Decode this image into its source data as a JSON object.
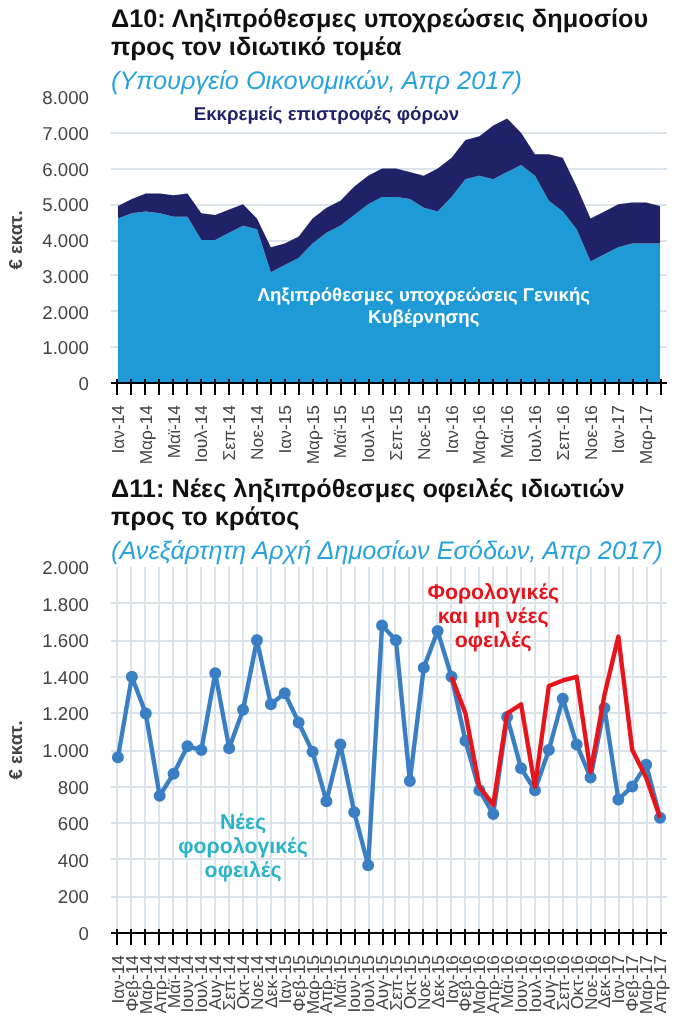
{
  "chart_data": [
    {
      "type": "area",
      "stacked": true,
      "title": "Δ10: Ληξιπρόθεσμες υποχρεώσεις δημοσίου προς τον ιδιωτικό τομέα",
      "subtitle": "(Υπουργείο Οικονομικών, Απρ 2017)",
      "ylabel": "€ εκατ.",
      "categories": [
        "Ιαν-14",
        null,
        "Μαρ-14",
        null,
        "Μαϊ-14",
        null,
        "Ιουλ-14",
        null,
        "Σεπ-14",
        null,
        "Νοε-14",
        null,
        "Ιαν-15",
        null,
        "Μαρ-15",
        null,
        "Μαϊ-15",
        null,
        "Ιουλ-15",
        null,
        "Σεπ-15",
        null,
        "Νοε-15",
        null,
        "Ιαν-16",
        null,
        "Μαρ-16",
        null,
        "Μαϊ-16",
        null,
        "Ιουλ-16",
        null,
        "Σεπ-16",
        null,
        "Νοε-16",
        null,
        "Ιαν-17",
        null,
        "Μαρ-17",
        null
      ],
      "series": [
        {
          "name": "Ληξιπρόθεσμες υποχρεώσεις Γενικής Κυβέρνησης",
          "color": "#1e9ad6",
          "values": [
            4600,
            4750,
            4800,
            4750,
            4650,
            4650,
            4000,
            4000,
            4200,
            4400,
            4300,
            3100,
            3300,
            3500,
            3900,
            4200,
            4400,
            4700,
            5000,
            5200,
            5200,
            5150,
            4900,
            4800,
            5200,
            5700,
            5800,
            5700,
            5900,
            6100,
            5800,
            5100,
            4800,
            4300,
            3400,
            3600,
            3800,
            3900,
            3900,
            3900
          ]
        },
        {
          "name": "Εκκρεμείς επιστροφές φόρων",
          "color": "#1f2266",
          "values": [
            350,
            400,
            500,
            550,
            600,
            650,
            750,
            700,
            650,
            600,
            300,
            700,
            600,
            600,
            700,
            700,
            700,
            800,
            800,
            800,
            800,
            750,
            900,
            1200,
            1100,
            1100,
            1100,
            1500,
            1500,
            900,
            600,
            1300,
            1500,
            1200,
            1200,
            1200,
            1200,
            1150,
            1150,
            1050
          ]
        }
      ],
      "ylim": [
        0,
        8000
      ],
      "yticks": [
        {
          "value": 0,
          "label": "0"
        },
        {
          "value": 1000,
          "label": "1.000"
        },
        {
          "value": 2000,
          "label": "2.000"
        },
        {
          "value": 3000,
          "label": "3.000"
        },
        {
          "value": 4000,
          "label": "4.000"
        },
        {
          "value": 5000,
          "label": "5.000"
        },
        {
          "value": 6000,
          "label": "6.000"
        },
        {
          "value": 7000,
          "label": "7.000"
        },
        {
          "value": 8000,
          "label": "8.000"
        }
      ],
      "grid": "y"
    },
    {
      "type": "line",
      "title": "Δ11: Νέες ληξιπρόθεσμες οφειλές ιδιωτιών προς το κράτος",
      "subtitle": "(Ανεξάρτητη Αρχή Δημοσίων Εσόδων, Απρ 2017)",
      "ylabel": "€ εκατ.",
      "categories": [
        "Ιαν-14",
        "Φεβ-14",
        "Μαρ-14",
        "Απρ-14",
        "Μαϊ-14",
        "Ιουν-14",
        "Ιουλ-14",
        "Αυγ-14",
        "Σεπ-14",
        "Οκτ-14",
        "Νοε-14",
        "Δεκ-14",
        "Ιαν-15",
        "Φεβ-15",
        "Μαρ-15",
        "Απρ-15",
        "Μαϊ-15",
        "Ιουν-15",
        "Ιουλ-15",
        "Αυγ-15",
        "Σεπ-15",
        "Οκτ-15",
        "Νοε-15",
        "Δεκ-15",
        "Ιαν-16",
        "Φεβ-16",
        "Μαρ-16",
        "Απρ-16",
        "Μαϊ-16",
        "Ιουν-16",
        "Ιουλ-16",
        "Αυγ-16",
        "Σεπ-16",
        "Οκτ-16",
        "Νοε-16",
        "Δεκ-16",
        "Ιαν-17",
        "Φεβ-17",
        "Μαρ-17",
        "Απρ-17"
      ],
      "series": [
        {
          "name": "Νέες φορολογικές οφειλές",
          "color": "#3a7fc4",
          "marker": "circle",
          "values": [
            960,
            1400,
            1200,
            750,
            870,
            1020,
            1000,
            1420,
            1010,
            1220,
            1600,
            1250,
            1310,
            1150,
            990,
            720,
            1030,
            660,
            370,
            1680,
            1600,
            830,
            1450,
            1650,
            1400,
            1050,
            780,
            650,
            1180,
            900,
            780,
            1000,
            1280,
            1030,
            850,
            1230,
            730,
            800,
            920,
            630
          ]
        },
        {
          "name": "Φορολογικές και μη νέες οφειλές",
          "color": "#e8141b",
          "marker": "none",
          "values": [
            null,
            null,
            null,
            null,
            null,
            null,
            null,
            null,
            null,
            null,
            null,
            null,
            null,
            null,
            null,
            null,
            null,
            null,
            null,
            null,
            null,
            null,
            null,
            null,
            1400,
            1200,
            800,
            700,
            1200,
            1250,
            800,
            1350,
            1380,
            1400,
            880,
            1300,
            1620,
            1000,
            850,
            630
          ]
        }
      ],
      "ylim": [
        0,
        2000
      ],
      "yticks": [
        {
          "value": 0,
          "label": "0"
        },
        {
          "value": 200,
          "label": "200"
        },
        {
          "value": 400,
          "label": "400"
        },
        {
          "value": 600,
          "label": "600"
        },
        {
          "value": 800,
          "label": "800"
        },
        {
          "value": 1000,
          "label": "1.000"
        },
        {
          "value": 1200,
          "label": "1.200"
        },
        {
          "value": 1400,
          "label": "1.400"
        },
        {
          "value": 1600,
          "label": "1.600"
        },
        {
          "value": 1800,
          "label": "1.800"
        },
        {
          "value": 2000,
          "label": "2.000"
        }
      ],
      "grid": true
    }
  ]
}
